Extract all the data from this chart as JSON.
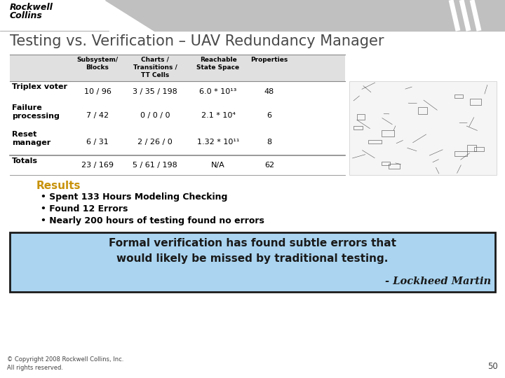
{
  "title": "Testing vs. Verification – UAV Redundancy Manager",
  "title_color": "#4a4a4a",
  "title_fontsize": 15,
  "bg_color": "#ffffff",
  "table_headers": [
    "Subsystem/\nBlocks",
    "Charts /\nTransitions /\nTT Cells",
    "Reachable\nState Space",
    "Properties"
  ],
  "table_rows": [
    [
      "Triplex voter",
      "10 / 96",
      "3 / 35 / 198",
      "6.0 * 10¹³",
      "48"
    ],
    [
      "Failure\nprocessing",
      "7 / 42",
      "0 / 0 / 0",
      "2.1 * 10⁴",
      "6"
    ],
    [
      "Reset\nmanager",
      "6 / 31",
      "2 / 26 / 0",
      "1.32 * 10¹¹",
      "8"
    ],
    [
      "Totals",
      "23 / 169",
      "5 / 61 / 198",
      "N/A",
      "62"
    ]
  ],
  "results_color": "#c8920a",
  "results_label": "Results",
  "bullet_points": [
    "Spent 133 Hours Modeling Checking",
    "Found 12 Errors",
    "Nearly 200 hours of testing found no errors"
  ],
  "quote_text": "Formal verification has found subtle errors that\nwould likely be missed by traditional testing.",
  "quote_author": "- Lockheed Martin",
  "quote_bg": "#aad4f0",
  "quote_border": "#1a1a1a",
  "footer_text": "© Copyright 2008 Rockwell Collins, Inc.\nAll rights reserved.",
  "page_number": "50",
  "separator_color": "#888888",
  "header_gray": "#e0e0e0",
  "logo_line1": "Rockwell",
  "logo_line2": "Collins",
  "stripe_color": "#c0c0c0"
}
